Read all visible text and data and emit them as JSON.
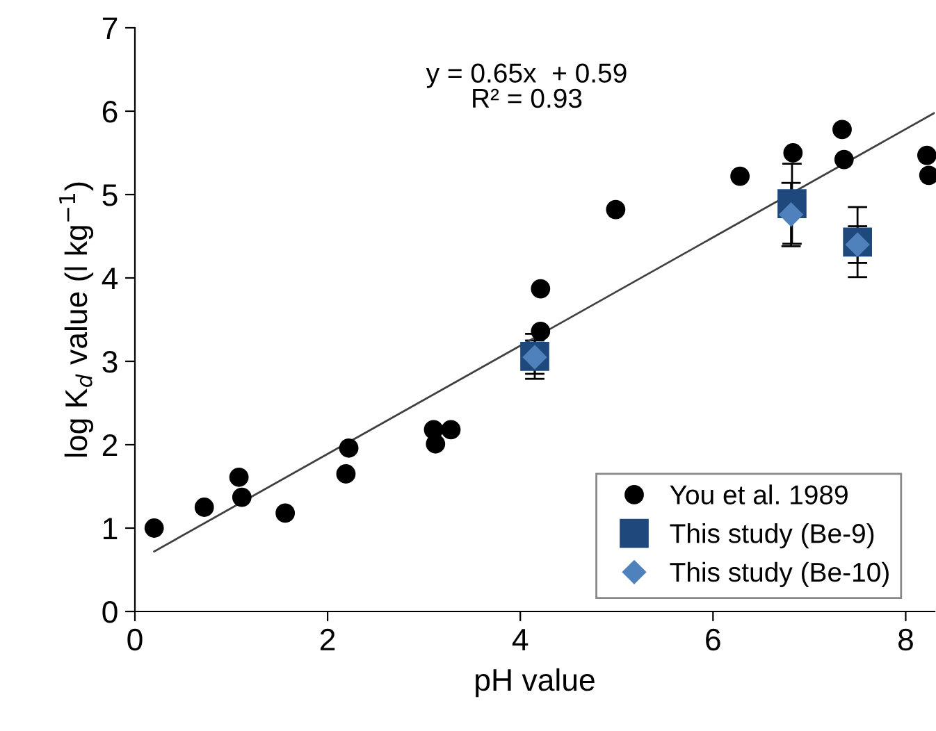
{
  "chart_data": {
    "type": "scatter",
    "xlabel": "pH value",
    "ylabel": "log K$_{d}$ value (l kg$^{−1}$)",
    "xlim": [
      0,
      8.3
    ],
    "ylim": [
      0,
      7
    ],
    "xticks": [
      0,
      2,
      4,
      6,
      8
    ],
    "yticks": [
      0,
      1,
      2,
      3,
      4,
      5,
      6,
      7
    ],
    "grid": false,
    "legend": "bottom right",
    "annotations": [
      "y = 0.65x  + 0.59\nR² = 0.93"
    ],
    "series": [
      {
        "name": "You et al. 1989",
        "color": "#000000",
        "marker": "circle",
        "x": [
          0.2,
          0.72,
          1.08,
          1.11,
          1.56,
          2.22,
          2.19,
          3.1,
          3.12,
          3.28,
          4.21,
          4.21,
          4.99,
          6.28,
          6.83,
          7.34,
          7.36,
          8.22,
          8.24
        ],
        "values": [
          1.0,
          1.25,
          1.61,
          1.37,
          1.18,
          1.96,
          1.65,
          2.18,
          2.01,
          2.18,
          3.87,
          3.36,
          4.82,
          5.22,
          5.5,
          5.78,
          5.42,
          5.47,
          5.23
        ]
      },
      {
        "name": "This study (Be-9)",
        "color": "#1f497d",
        "marker": "square",
        "x": [
          4.15,
          6.82,
          7.5
        ],
        "values": [
          3.06,
          4.89,
          4.43
        ],
        "errors": [
          0.27,
          0.48,
          0.42
        ]
      },
      {
        "name": "This study (Be-10)",
        "color": "#4f81bd",
        "marker": "diamond",
        "x": [
          4.15,
          6.81,
          7.5
        ],
        "values": [
          3.05,
          4.76,
          4.4
        ],
        "errors": [
          0.2,
          0.38,
          0.22
        ]
      },
      {
        "type": "line",
        "color": "#404040",
        "marker": "none",
        "x": [
          0.2,
          8.3
        ],
        "values": [
          0.72,
          5.98
        ]
      }
    ]
  }
}
